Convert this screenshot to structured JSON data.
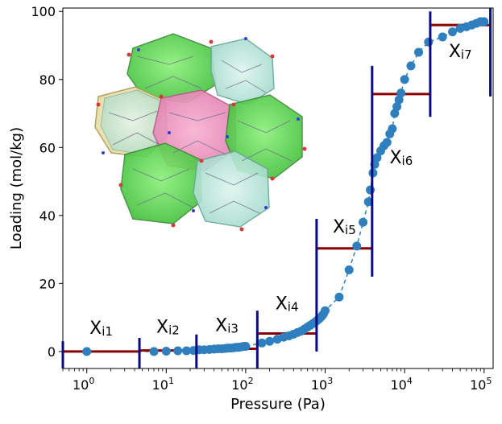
{
  "chart_data": {
    "type": "scatter",
    "xlabel": "Pressure (Pa)",
    "ylabel": "Loading (mol/kg)",
    "xscale": "log",
    "xlim": [
      0.5,
      130000
    ],
    "ylim": [
      -5,
      101
    ],
    "x_ticks": [
      {
        "base": "10",
        "exp": "0",
        "value": 1
      },
      {
        "base": "10",
        "exp": "1",
        "value": 10
      },
      {
        "base": "10",
        "exp": "2",
        "value": 100
      },
      {
        "base": "10",
        "exp": "3",
        "value": 1000
      },
      {
        "base": "10",
        "exp": "4",
        "value": 10000
      },
      {
        "base": "10",
        "exp": "5",
        "value": 100000
      }
    ],
    "y_ticks": [
      "0",
      "20",
      "40",
      "60",
      "80",
      "100"
    ],
    "colors": {
      "points": "#2f7fbf",
      "line": "#2f7fbf",
      "step_line": "#8b0000",
      "step_divider": "#0a0a82"
    },
    "series": [
      {
        "marker": "circle",
        "line": "dashed",
        "x": [
          1.0,
          7.0,
          10.0,
          14.0,
          18.0,
          22.0,
          26.0,
          30.0,
          35.0,
          40.0,
          45.0,
          50.0,
          55.0,
          60.0,
          65.0,
          70.0,
          75.0,
          80.0,
          85.0,
          90.0,
          95.0,
          100.0,
          160.0,
          200.0,
          250.0,
          300.0,
          350.0,
          400.0,
          450.0,
          500.0,
          550.0,
          600.0,
          650.0,
          700.0,
          750.0,
          800.0,
          850.0,
          900.0,
          950.0,
          1000.0,
          1500.0,
          2000.0,
          2500.0,
          3000.0,
          3500.0,
          3700.0,
          4000.0,
          4200.0,
          4500.0,
          5000.0,
          5500.0,
          6000.0,
          6500.0,
          7000.0,
          7500.0,
          8000.0,
          8500.0,
          9000.0,
          10000.0,
          12000.0,
          15000.0,
          20000.0,
          30000.0,
          40000.0,
          50000.0,
          60000.0,
          70000.0,
          80000.0,
          90000.0,
          100000.0
        ],
        "y": [
          0.0,
          0.0,
          0.1,
          0.2,
          0.2,
          0.3,
          0.5,
          0.5,
          0.6,
          0.7,
          0.8,
          0.8,
          0.9,
          1.0,
          1.0,
          1.1,
          1.2,
          1.2,
          1.3,
          1.4,
          1.5,
          1.5,
          2.5,
          3.0,
          3.6,
          4.2,
          4.6,
          5.1,
          5.6,
          6.0,
          6.6,
          7.2,
          7.7,
          8.2,
          8.7,
          9.2,
          9.7,
          10.3,
          11.0,
          12.0,
          16.0,
          24.0,
          31.0,
          38.0,
          44.0,
          47.5,
          52.5,
          55.0,
          57.0,
          59.0,
          60.5,
          61.5,
          64.0,
          65.5,
          70.0,
          72.0,
          74.0,
          76.0,
          80.0,
          84.0,
          88.0,
          91.0,
          92.5,
          94.0,
          95.0,
          95.5,
          96.0,
          96.5,
          97.0,
          97.0
        ]
      }
    ],
    "step_intervals": [
      {
        "label": "X",
        "sub": "i1",
        "x_start": 0.5,
        "x_end": 4.6,
        "y": 0.0
      },
      {
        "label": "X",
        "sub": "i2",
        "x_start": 4.6,
        "x_end": 24.0,
        "y": 0.3
      },
      {
        "label": "X",
        "sub": "i3",
        "x_start": 24.0,
        "x_end": 140.0,
        "y": 0.8
      },
      {
        "label": "X",
        "sub": "i4",
        "x_start": 140.0,
        "x_end": 780.0,
        "y": 5.3
      },
      {
        "label": "X",
        "sub": "i5",
        "x_start": 780.0,
        "x_end": 3900.0,
        "y": 30.3
      },
      {
        "label": "X",
        "sub": "i6",
        "x_start": 3900.0,
        "x_end": 21000.0,
        "y": 75.7
      },
      {
        "label": "X",
        "sub": "i7",
        "x_start": 21000.0,
        "x_end": 120000.0,
        "y": 96.0
      }
    ],
    "dividers": [
      {
        "x": 0.5,
        "y_low": -5,
        "y_high": 3
      },
      {
        "x": 4.6,
        "y_low": -5,
        "y_high": 4
      },
      {
        "x": 24.0,
        "y_low": -5,
        "y_high": 5
      },
      {
        "x": 140.0,
        "y_low": -5,
        "y_high": 12
      },
      {
        "x": 780.0,
        "y_low": 0,
        "y_high": 39
      },
      {
        "x": 3900.0,
        "y_low": 22,
        "y_high": 84
      },
      {
        "x": 21000.0,
        "y_low": 69,
        "y_high": 100
      },
      {
        "x": 120000.0,
        "y_low": 75,
        "y_high": 101
      }
    ],
    "inset": {
      "type": "molecular-framework-illustration"
    }
  }
}
